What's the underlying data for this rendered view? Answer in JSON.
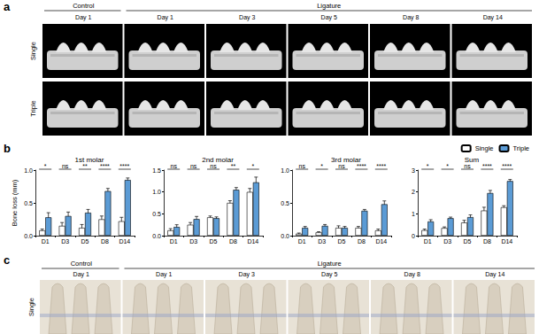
{
  "figure": {
    "panel_a": {
      "label": "a",
      "control": "Control",
      "ligature": "Ligature",
      "columns": [
        "Day 1",
        "Day 1",
        "Day 3",
        "Day 5",
        "Day 8",
        "Day 14"
      ],
      "rows": [
        "Single",
        "Triple"
      ]
    },
    "panel_b_label": "b",
    "panel_c": {
      "label": "c",
      "control": "Control",
      "ligature": "Ligature",
      "columns": [
        "Day 1",
        "Day 1",
        "Day 3",
        "Day 5",
        "Day 8",
        "Day 14"
      ],
      "rows": [
        "Single"
      ]
    }
  },
  "chart_data": [
    {
      "type": "bar",
      "title": "1st molar",
      "ylabel": "Bone loss (mm)",
      "categories": [
        "D1",
        "D3",
        "D5",
        "D8",
        "D14"
      ],
      "series": [
        {
          "name": "Single",
          "color": "#ffffff",
          "values": [
            0.08,
            0.15,
            0.12,
            0.25,
            0.22
          ],
          "errors": [
            0.02,
            0.05,
            0.05,
            0.05,
            0.06
          ]
        },
        {
          "name": "Triple",
          "color": "#5b9bd5",
          "values": [
            0.28,
            0.3,
            0.35,
            0.68,
            0.85
          ],
          "errors": [
            0.07,
            0.06,
            0.05,
            0.04,
            0.03
          ]
        }
      ],
      "ylim": [
        0,
        1
      ],
      "yticks": [
        {
          "value": 0,
          "label": "0.0"
        },
        {
          "value": 0.5,
          "label": "0.5"
        },
        {
          "value": 1,
          "label": "1.0"
        }
      ],
      "annotations": [
        "*",
        "ns",
        "**",
        "****",
        "****"
      ],
      "grid": false
    },
    {
      "type": "bar",
      "title": "2nd molar",
      "categories": [
        "D1",
        "D3",
        "D5",
        "D8",
        "D14"
      ],
      "series": [
        {
          "name": "Single",
          "color": "#ffffff",
          "values": [
            0.12,
            0.25,
            0.42,
            0.75,
            1.0
          ],
          "errors": [
            0.04,
            0.05,
            0.03,
            0.05,
            0.08
          ]
        },
        {
          "name": "Triple",
          "color": "#5b9bd5",
          "values": [
            0.2,
            0.38,
            0.4,
            1.05,
            1.22
          ],
          "errors": [
            0.05,
            0.06,
            0.03,
            0.05,
            0.12
          ]
        }
      ],
      "ylim": [
        0,
        1.5
      ],
      "yticks": [
        {
          "value": 0,
          "label": "0.0"
        },
        {
          "value": 0.5,
          "label": "0.5"
        },
        {
          "value": 1,
          "label": "1.0"
        },
        {
          "value": 1.5,
          "label": "1.5"
        }
      ],
      "annotations": [
        "ns",
        "ns",
        "ns",
        "**",
        "*"
      ],
      "grid": false
    },
    {
      "type": "bar",
      "title": "3rd molar",
      "categories": [
        "D1",
        "D3",
        "D5",
        "D8",
        "D14"
      ],
      "series": [
        {
          "name": "Single",
          "color": "#ffffff",
          "values": [
            0.03,
            0.05,
            0.12,
            0.12,
            0.08
          ],
          "errors": [
            0.01,
            0.01,
            0.03,
            0.02,
            0.02
          ]
        },
        {
          "name": "Triple",
          "color": "#5b9bd5",
          "values": [
            0.12,
            0.15,
            0.12,
            0.38,
            0.48
          ],
          "errors": [
            0.02,
            0.02,
            0.02,
            0.02,
            0.05
          ]
        }
      ],
      "ylim": [
        0,
        1
      ],
      "yticks": [
        {
          "value": 0,
          "label": "0.0"
        },
        {
          "value": 0.5,
          "label": "0.5"
        },
        {
          "value": 1,
          "label": "1.0"
        }
      ],
      "annotations": [
        "ns",
        "*",
        "ns",
        "****",
        "****"
      ],
      "grid": false
    },
    {
      "type": "bar",
      "title": "Sum",
      "categories": [
        "D1",
        "D3",
        "D5",
        "D8",
        "D14"
      ],
      "series": [
        {
          "name": "Single",
          "color": "#ffffff",
          "values": [
            0.25,
            0.35,
            0.6,
            1.15,
            1.3
          ],
          "errors": [
            0.05,
            0.05,
            0.1,
            0.15,
            0.07
          ]
        },
        {
          "name": "Triple",
          "color": "#5b9bd5",
          "values": [
            0.65,
            0.8,
            0.85,
            1.95,
            2.5
          ],
          "errors": [
            0.08,
            0.05,
            0.1,
            0.12,
            0.07
          ]
        }
      ],
      "ylim": [
        0,
        3
      ],
      "yticks": [
        0,
        1,
        2,
        3
      ],
      "annotations": [
        "*",
        "*",
        "ns",
        "****",
        "****"
      ],
      "grid": false,
      "legend": "upper right"
    }
  ]
}
